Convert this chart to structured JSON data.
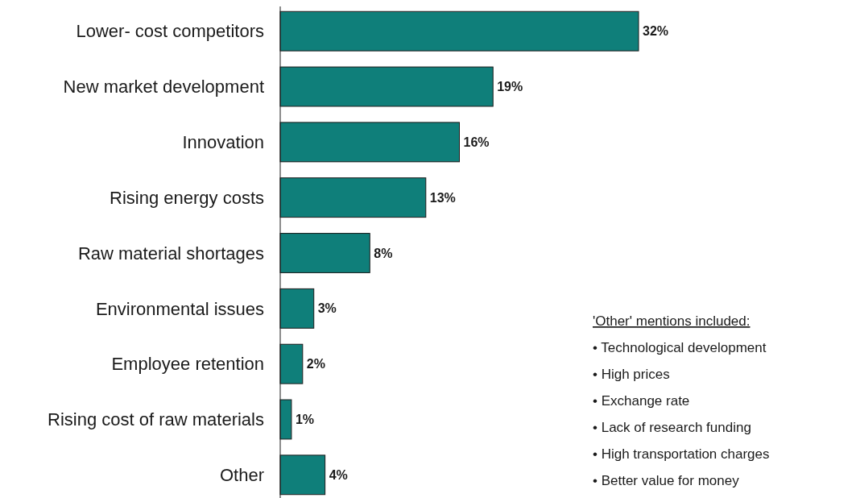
{
  "chart_data": {
    "type": "bar",
    "orientation": "horizontal",
    "categories": [
      "Lower- cost competitors",
      "New market development",
      "Innovation",
      "Rising energy costs",
      "Raw material shortages",
      "Environmental issues",
      "Employee retention",
      "Rising cost of raw materials",
      "Other"
    ],
    "values": [
      32,
      19,
      16,
      13,
      8,
      3,
      2,
      1,
      4
    ],
    "value_labels": [
      "32%",
      "19%",
      "16%",
      "13%",
      "8%",
      "3%",
      "2%",
      "1%",
      "4%"
    ],
    "color": "#0f7f7a",
    "annotations": [
      "'Other' mentions included:",
      "• Technological development",
      "• High prices",
      "• Exchange rate",
      "• Lack of research funding",
      "• High transportation charges",
      "• Better value for money"
    ]
  }
}
